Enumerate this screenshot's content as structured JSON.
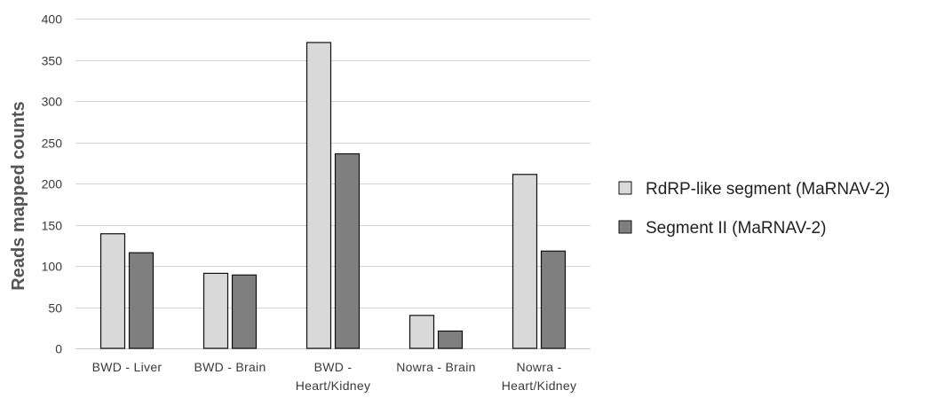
{
  "chart_data": {
    "type": "bar",
    "title": "",
    "xlabel": "",
    "ylabel": "Reads mapped counts",
    "ylim": [
      0,
      400
    ],
    "yticks": [
      0,
      50,
      100,
      150,
      200,
      250,
      300,
      350,
      400
    ],
    "grid": true,
    "legend_position": "right",
    "categories": [
      [
        "BWD - Liver"
      ],
      [
        "BWD - Brain"
      ],
      [
        "BWD -",
        "Heart/Kidney"
      ],
      [
        "Nowra - Brain"
      ],
      [
        "Nowra -",
        "Heart/Kidney"
      ]
    ],
    "series": [
      {
        "name": "RdRP-like segment (MaRNAV-2)",
        "color": "#d9d9d9",
        "values": [
          139,
          91,
          371,
          40,
          211
        ]
      },
      {
        "name": "Segment II (MaRNAV-2)",
        "color": "#7f7f7f",
        "values": [
          116,
          89,
          236,
          21,
          118
        ]
      }
    ]
  }
}
